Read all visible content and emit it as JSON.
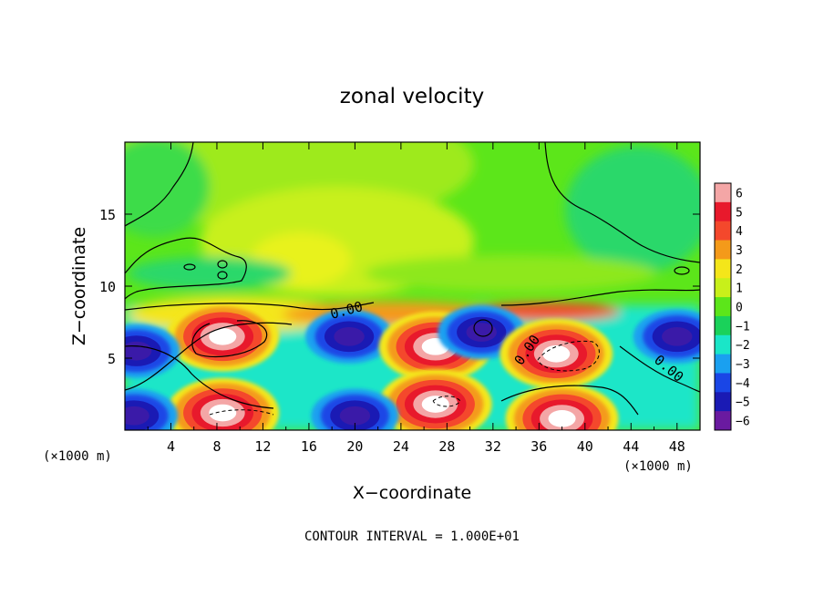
{
  "chart_data": {
    "type": "heatmap",
    "title": "zonal velocity",
    "xlabel": "X−coordinate",
    "ylabel": "Z−coordinate",
    "x_units_left": "(×1000 m)",
    "x_units_right": "(×1000 m)",
    "xlim": [
      0,
      50
    ],
    "ylim": [
      0,
      20
    ],
    "x_ticks": [
      {
        "value": 4,
        "label": "4"
      },
      {
        "value": 8,
        "label": "8"
      },
      {
        "value": 12,
        "label": "12"
      },
      {
        "value": 16,
        "label": "16"
      },
      {
        "value": 20,
        "label": "20"
      },
      {
        "value": 24,
        "label": "24"
      },
      {
        "value": 28,
        "label": "28"
      },
      {
        "value": 32,
        "label": "32"
      },
      {
        "value": 36,
        "label": "36"
      },
      {
        "value": 40,
        "label": "40"
      },
      {
        "value": 44,
        "label": "44"
      },
      {
        "value": 48,
        "label": "48"
      }
    ],
    "y_ticks": [
      {
        "value": 5,
        "label": "5"
      },
      {
        "value": 10,
        "label": "10"
      },
      {
        "value": 15,
        "label": "15"
      }
    ],
    "colorbar": {
      "levels": [
        6,
        5,
        4,
        3,
        2,
        1,
        0,
        -1,
        -2,
        -3,
        -4,
        -5,
        -6
      ],
      "labels": [
        "6",
        "5",
        "4",
        "3",
        "2",
        "1",
        "0",
        "−1",
        "−2",
        "−3",
        "−4",
        "−5",
        "−6"
      ],
      "colors": [
        "#f4a6a6",
        "#e8192c",
        "#f4482c",
        "#f49a1a",
        "#f4e61a",
        "#c8f01a",
        "#5ce61a",
        "#1ad25a",
        "#1ae6c8",
        "#1aa0f0",
        "#1a46e6",
        "#1a1ab4",
        "#6a1aa0"
      ]
    },
    "contour_labels": [
      "0.00",
      "0.00",
      "0.00"
    ],
    "annotation": "CONTOUR INTERVAL = 1.000E+01",
    "field_regions": [
      {
        "kind": "upper",
        "value": 1.5,
        "x": 24,
        "y": 14
      },
      {
        "kind": "upper",
        "value": -1.5,
        "x": 3,
        "y": 16
      },
      {
        "kind": "upper",
        "value": -1.5,
        "x": 46,
        "y": 16
      },
      {
        "kind": "eddy",
        "value": 7,
        "x": 8.5,
        "y": 6.5
      },
      {
        "kind": "eddy",
        "value": -6,
        "x": 1,
        "y": 5.5
      },
      {
        "kind": "eddy",
        "value": -5,
        "x": 19.5,
        "y": 6.5
      },
      {
        "kind": "eddy",
        "value": 7,
        "x": 27,
        "y": 5.8
      },
      {
        "kind": "eddy",
        "value": -5,
        "x": 31,
        "y": 6.8
      },
      {
        "kind": "eddy",
        "value": 7,
        "x": 37.5,
        "y": 5.3
      },
      {
        "kind": "eddy",
        "value": -5,
        "x": 48,
        "y": 6.5
      },
      {
        "kind": "eddy",
        "value": 7,
        "x": 8.5,
        "y": 1.2
      },
      {
        "kind": "eddy",
        "value": 7,
        "x": 27,
        "y": 1.8
      },
      {
        "kind": "eddy",
        "value": 7,
        "x": 38,
        "y": 0.8
      },
      {
        "kind": "eddy",
        "value": -5,
        "x": 20,
        "y": 1
      },
      {
        "kind": "eddy",
        "value": -5,
        "x": 0.8,
        "y": 1
      }
    ]
  }
}
